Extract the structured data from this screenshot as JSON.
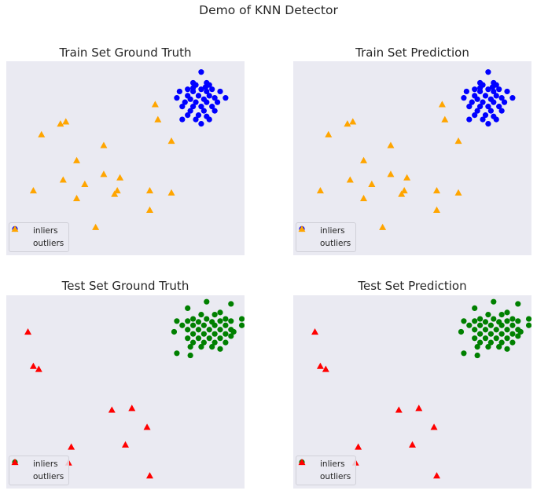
{
  "figure": {
    "suptitle": "Demo of KNN Detector"
  },
  "colors": {
    "axes_bg": "#eaeaf2"
  },
  "chart_data": [
    {
      "type": "scatter",
      "title": "Train Set Ground Truth",
      "xlim": [
        -1.4,
        3.0
      ],
      "ylim": [
        -1.5,
        3.0
      ],
      "grid": false,
      "legend_position": "lower-left",
      "series": [
        {
          "name": "inliers",
          "color": "#0000ff",
          "marker": "circle",
          "points": [
            [
              2.2,
              2.75
            ],
            [
              2.05,
              2.5
            ],
            [
              2.3,
              2.5
            ],
            [
              2.1,
              2.45
            ],
            [
              2.35,
              2.45
            ],
            [
              1.95,
              2.35
            ],
            [
              2.2,
              2.35
            ],
            [
              2.4,
              2.35
            ],
            [
              1.8,
              2.3
            ],
            [
              2.05,
              2.3
            ],
            [
              2.3,
              2.3
            ],
            [
              2.55,
              2.3
            ],
            [
              1.95,
              2.2
            ],
            [
              2.15,
              2.2
            ],
            [
              2.35,
              2.2
            ],
            [
              1.75,
              2.15
            ],
            [
              2.0,
              2.12
            ],
            [
              2.25,
              2.12
            ],
            [
              2.45,
              2.15
            ],
            [
              2.65,
              2.15
            ],
            [
              1.9,
              2.05
            ],
            [
              2.1,
              2.05
            ],
            [
              2.3,
              2.05
            ],
            [
              2.5,
              2.05
            ],
            [
              1.85,
              1.95
            ],
            [
              2.05,
              1.95
            ],
            [
              2.2,
              1.95
            ],
            [
              2.4,
              1.95
            ],
            [
              2.0,
              1.85
            ],
            [
              2.25,
              1.85
            ],
            [
              2.45,
              1.85
            ],
            [
              1.95,
              1.75
            ],
            [
              2.15,
              1.75
            ],
            [
              2.3,
              1.72
            ],
            [
              1.85,
              1.65
            ],
            [
              2.1,
              1.65
            ],
            [
              2.35,
              1.65
            ],
            [
              2.2,
              1.55
            ],
            [
              2.05,
              2.38
            ],
            [
              2.28,
              2.4
            ]
          ]
        },
        {
          "name": "outliers",
          "color": "#ffa500",
          "marker": "triangle",
          "points": [
            [
              1.35,
              2.0
            ],
            [
              1.4,
              1.65
            ],
            [
              -0.3,
              1.6
            ],
            [
              -0.4,
              1.55
            ],
            [
              -0.75,
              1.3
            ],
            [
              1.65,
              1.15
            ],
            [
              0.4,
              1.05
            ],
            [
              -0.1,
              0.7
            ],
            [
              0.4,
              0.38
            ],
            [
              0.7,
              0.3
            ],
            [
              -0.35,
              0.25
            ],
            [
              0.05,
              0.15
            ],
            [
              -0.9,
              0.0
            ],
            [
              0.65,
              0.0
            ],
            [
              1.25,
              0.0
            ],
            [
              1.65,
              -0.05
            ],
            [
              0.6,
              -0.08
            ],
            [
              -0.1,
              -0.18
            ],
            [
              1.25,
              -0.45
            ],
            [
              0.25,
              -0.85
            ]
          ]
        }
      ]
    },
    {
      "type": "scatter",
      "title": "Train Set Prediction",
      "xlim": [
        -1.4,
        3.0
      ],
      "ylim": [
        -1.5,
        3.0
      ],
      "grid": false,
      "legend_position": "lower-left",
      "series": [
        {
          "name": "inliers",
          "color": "#0000ff",
          "marker": "circle",
          "points": [
            [
              2.2,
              2.75
            ],
            [
              2.05,
              2.5
            ],
            [
              2.3,
              2.5
            ],
            [
              2.1,
              2.45
            ],
            [
              2.35,
              2.45
            ],
            [
              1.95,
              2.35
            ],
            [
              2.2,
              2.35
            ],
            [
              2.4,
              2.35
            ],
            [
              1.8,
              2.3
            ],
            [
              2.05,
              2.3
            ],
            [
              2.3,
              2.3
            ],
            [
              2.55,
              2.3
            ],
            [
              1.95,
              2.2
            ],
            [
              2.15,
              2.2
            ],
            [
              2.35,
              2.2
            ],
            [
              1.75,
              2.15
            ],
            [
              2.0,
              2.12
            ],
            [
              2.25,
              2.12
            ],
            [
              2.45,
              2.15
            ],
            [
              2.65,
              2.15
            ],
            [
              1.9,
              2.05
            ],
            [
              2.1,
              2.05
            ],
            [
              2.3,
              2.05
            ],
            [
              2.5,
              2.05
            ],
            [
              1.85,
              1.95
            ],
            [
              2.05,
              1.95
            ],
            [
              2.2,
              1.95
            ],
            [
              2.4,
              1.95
            ],
            [
              2.0,
              1.85
            ],
            [
              2.25,
              1.85
            ],
            [
              2.45,
              1.85
            ],
            [
              1.95,
              1.75
            ],
            [
              2.15,
              1.75
            ],
            [
              2.3,
              1.72
            ],
            [
              1.85,
              1.65
            ],
            [
              2.1,
              1.65
            ],
            [
              2.35,
              1.65
            ],
            [
              2.2,
              1.55
            ],
            [
              2.05,
              2.38
            ],
            [
              2.28,
              2.4
            ]
          ]
        },
        {
          "name": "outliers",
          "color": "#ffa500",
          "marker": "triangle",
          "points": [
            [
              1.35,
              2.0
            ],
            [
              1.4,
              1.65
            ],
            [
              -0.3,
              1.6
            ],
            [
              -0.4,
              1.55
            ],
            [
              -0.75,
              1.3
            ],
            [
              1.65,
              1.15
            ],
            [
              0.4,
              1.05
            ],
            [
              -0.1,
              0.7
            ],
            [
              0.4,
              0.38
            ],
            [
              0.7,
              0.3
            ],
            [
              -0.35,
              0.25
            ],
            [
              0.05,
              0.15
            ],
            [
              -0.9,
              0.0
            ],
            [
              0.65,
              0.0
            ],
            [
              1.25,
              0.0
            ],
            [
              1.65,
              -0.05
            ],
            [
              0.6,
              -0.08
            ],
            [
              -0.1,
              -0.18
            ],
            [
              1.25,
              -0.45
            ],
            [
              0.25,
              -0.85
            ]
          ]
        }
      ]
    },
    {
      "type": "scatter",
      "title": "Test Set Ground Truth",
      "xlim": [
        -1.4,
        3.0
      ],
      "ylim": [
        -1.5,
        3.0
      ],
      "grid": false,
      "legend_position": "lower-left",
      "series": [
        {
          "name": "inliers",
          "color": "#008000",
          "marker": "circle",
          "points": [
            [
              2.3,
              2.85
            ],
            [
              2.75,
              2.8
            ],
            [
              1.95,
              2.7
            ],
            [
              2.2,
              2.55
            ],
            [
              2.45,
              2.55
            ],
            [
              2.55,
              2.6
            ],
            [
              2.05,
              2.45
            ],
            [
              2.3,
              2.45
            ],
            [
              2.65,
              2.45
            ],
            [
              1.75,
              2.4
            ],
            [
              1.95,
              2.4
            ],
            [
              2.15,
              2.38
            ],
            [
              2.4,
              2.38
            ],
            [
              2.55,
              2.4
            ],
            [
              2.75,
              2.4
            ],
            [
              2.95,
              2.45
            ],
            [
              1.85,
              2.3
            ],
            [
              2.05,
              2.3
            ],
            [
              2.25,
              2.3
            ],
            [
              2.45,
              2.3
            ],
            [
              2.65,
              2.3
            ],
            [
              2.95,
              2.3
            ],
            [
              1.95,
              2.2
            ],
            [
              2.15,
              2.2
            ],
            [
              2.35,
              2.2
            ],
            [
              2.55,
              2.2
            ],
            [
              2.75,
              2.2
            ],
            [
              1.7,
              2.15
            ],
            [
              2.05,
              2.1
            ],
            [
              2.25,
              2.1
            ],
            [
              2.45,
              2.1
            ],
            [
              2.65,
              2.1
            ],
            [
              2.8,
              2.15
            ],
            [
              1.95,
              2.0
            ],
            [
              2.15,
              2.0
            ],
            [
              2.35,
              2.0
            ],
            [
              2.55,
              2.0
            ],
            [
              2.75,
              2.05
            ],
            [
              2.05,
              1.9
            ],
            [
              2.25,
              1.9
            ],
            [
              2.45,
              1.9
            ],
            [
              2.65,
              1.9
            ],
            [
              2.0,
              1.8
            ],
            [
              2.2,
              1.8
            ],
            [
              2.4,
              1.8
            ],
            [
              2.55,
              1.75
            ],
            [
              1.75,
              1.65
            ],
            [
              2.0,
              1.6
            ]
          ]
        },
        {
          "name": "outliers",
          "color": "#ff0000",
          "marker": "triangle",
          "points": [
            [
              -1.0,
              2.15
            ],
            [
              -0.9,
              1.35
            ],
            [
              -0.8,
              1.28
            ],
            [
              0.55,
              0.33
            ],
            [
              0.92,
              0.37
            ],
            [
              1.2,
              -0.07
            ],
            [
              -0.2,
              -0.53
            ],
            [
              0.8,
              -0.48
            ],
            [
              -0.25,
              -0.9
            ],
            [
              1.25,
              -1.2
            ]
          ]
        }
      ]
    },
    {
      "type": "scatter",
      "title": "Test Set Prediction",
      "xlim": [
        -1.4,
        3.0
      ],
      "ylim": [
        -1.5,
        3.0
      ],
      "grid": false,
      "legend_position": "lower-left",
      "series": [
        {
          "name": "inliers",
          "color": "#008000",
          "marker": "circle",
          "points": [
            [
              2.3,
              2.85
            ],
            [
              2.75,
              2.8
            ],
            [
              1.95,
              2.7
            ],
            [
              2.2,
              2.55
            ],
            [
              2.45,
              2.55
            ],
            [
              2.55,
              2.6
            ],
            [
              2.05,
              2.45
            ],
            [
              2.3,
              2.45
            ],
            [
              2.65,
              2.45
            ],
            [
              1.75,
              2.4
            ],
            [
              1.95,
              2.4
            ],
            [
              2.15,
              2.38
            ],
            [
              2.4,
              2.38
            ],
            [
              2.55,
              2.4
            ],
            [
              2.75,
              2.4
            ],
            [
              2.95,
              2.45
            ],
            [
              1.85,
              2.3
            ],
            [
              2.05,
              2.3
            ],
            [
              2.25,
              2.3
            ],
            [
              2.45,
              2.3
            ],
            [
              2.65,
              2.3
            ],
            [
              2.95,
              2.3
            ],
            [
              1.95,
              2.2
            ],
            [
              2.15,
              2.2
            ],
            [
              2.35,
              2.2
            ],
            [
              2.55,
              2.2
            ],
            [
              2.75,
              2.2
            ],
            [
              1.7,
              2.15
            ],
            [
              2.05,
              2.1
            ],
            [
              2.25,
              2.1
            ],
            [
              2.45,
              2.1
            ],
            [
              2.65,
              2.1
            ],
            [
              2.8,
              2.15
            ],
            [
              1.95,
              2.0
            ],
            [
              2.15,
              2.0
            ],
            [
              2.35,
              2.0
            ],
            [
              2.55,
              2.0
            ],
            [
              2.75,
              2.05
            ],
            [
              2.05,
              1.9
            ],
            [
              2.25,
              1.9
            ],
            [
              2.45,
              1.9
            ],
            [
              2.65,
              1.9
            ],
            [
              2.0,
              1.8
            ],
            [
              2.2,
              1.8
            ],
            [
              2.4,
              1.8
            ],
            [
              2.55,
              1.75
            ],
            [
              1.75,
              1.65
            ],
            [
              2.0,
              1.6
            ]
          ]
        },
        {
          "name": "outliers",
          "color": "#ff0000",
          "marker": "triangle",
          "points": [
            [
              -1.0,
              2.15
            ],
            [
              -0.9,
              1.35
            ],
            [
              -0.8,
              1.28
            ],
            [
              0.55,
              0.33
            ],
            [
              0.92,
              0.37
            ],
            [
              1.2,
              -0.07
            ],
            [
              -0.2,
              -0.53
            ],
            [
              0.8,
              -0.48
            ],
            [
              -0.25,
              -0.9
            ],
            [
              1.25,
              -1.2
            ]
          ]
        }
      ]
    }
  ]
}
